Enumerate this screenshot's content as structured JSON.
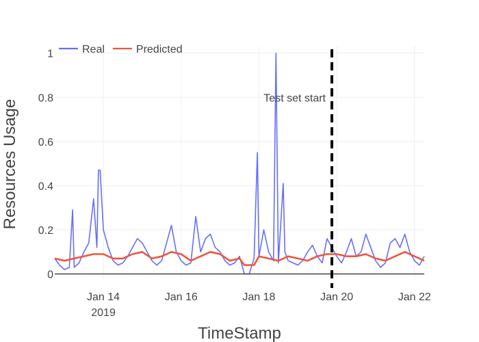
{
  "chart_data": {
    "type": "line",
    "xlabel": "TimeStamp",
    "ylabel": "Resources Usage",
    "x_range": [
      "2019-01-12 18:00",
      "2019-01-22 06:00"
    ],
    "ylim": [
      -0.02,
      1.03
    ],
    "x_ticks": [
      {
        "date": "2019-01-14",
        "label": "Jan 14",
        "sublabel": "2019"
      },
      {
        "date": "2019-01-16",
        "label": "Jan 16",
        "sublabel": ""
      },
      {
        "date": "2019-01-18",
        "label": "Jan 18",
        "sublabel": ""
      },
      {
        "date": "2019-01-20",
        "label": "Jan 20",
        "sublabel": ""
      },
      {
        "date": "2019-01-22",
        "label": "Jan 22",
        "sublabel": ""
      }
    ],
    "y_ticks": [
      {
        "value": 0,
        "label": "0"
      },
      {
        "value": 0.2,
        "label": "0.2"
      },
      {
        "value": 0.4,
        "label": "0.4"
      },
      {
        "value": 0.6,
        "label": "0.6"
      },
      {
        "value": 0.8,
        "label": "0.8"
      },
      {
        "value": 1,
        "label": "1"
      }
    ],
    "grid": true,
    "legend": {
      "position": "top-left",
      "orientation": "horizontal"
    },
    "series": [
      {
        "name": "Real",
        "color": "#636efa",
        "points": [
          [
            "2019-01-12 18:00",
            0.07
          ],
          [
            "2019-01-12 21:00",
            0.04
          ],
          [
            "2019-01-13 00:00",
            0.02
          ],
          [
            "2019-01-13 03:00",
            0.03
          ],
          [
            "2019-01-13 05:00",
            0.29
          ],
          [
            "2019-01-13 06:00",
            0.03
          ],
          [
            "2019-01-13 09:00",
            0.05
          ],
          [
            "2019-01-13 12:00",
            0.1
          ],
          [
            "2019-01-13 15:00",
            0.14
          ],
          [
            "2019-01-13 18:00",
            0.34
          ],
          [
            "2019-01-13 20:00",
            0.12
          ],
          [
            "2019-01-13 21:00",
            0.47
          ],
          [
            "2019-01-13 22:00",
            0.47
          ],
          [
            "2019-01-14 00:00",
            0.2
          ],
          [
            "2019-01-14 03:00",
            0.12
          ],
          [
            "2019-01-14 06:00",
            0.06
          ],
          [
            "2019-01-14 09:00",
            0.04
          ],
          [
            "2019-01-14 12:00",
            0.05
          ],
          [
            "2019-01-14 15:00",
            0.08
          ],
          [
            "2019-01-14 18:00",
            0.12
          ],
          [
            "2019-01-14 21:00",
            0.16
          ],
          [
            "2019-01-15 00:00",
            0.14
          ],
          [
            "2019-01-15 03:00",
            0.1
          ],
          [
            "2019-01-15 06:00",
            0.06
          ],
          [
            "2019-01-15 09:00",
            0.04
          ],
          [
            "2019-01-15 12:00",
            0.06
          ],
          [
            "2019-01-15 15:00",
            0.14
          ],
          [
            "2019-01-15 18:00",
            0.22
          ],
          [
            "2019-01-15 21:00",
            0.1
          ],
          [
            "2019-01-16 00:00",
            0.06
          ],
          [
            "2019-01-16 03:00",
            0.04
          ],
          [
            "2019-01-16 06:00",
            0.05
          ],
          [
            "2019-01-16 09:00",
            0.26
          ],
          [
            "2019-01-16 12:00",
            0.1
          ],
          [
            "2019-01-16 15:00",
            0.16
          ],
          [
            "2019-01-16 18:00",
            0.18
          ],
          [
            "2019-01-16 21:00",
            0.12
          ],
          [
            "2019-01-17 00:00",
            0.1
          ],
          [
            "2019-01-17 03:00",
            0.06
          ],
          [
            "2019-01-17 06:00",
            0.04
          ],
          [
            "2019-01-17 09:00",
            0.05
          ],
          [
            "2019-01-17 12:00",
            0.08
          ],
          [
            "2019-01-17 15:00",
            0.0
          ],
          [
            "2019-01-17 18:00",
            0.0
          ],
          [
            "2019-01-17 21:00",
            0.07
          ],
          [
            "2019-01-17 23:00",
            0.55
          ],
          [
            "2019-01-18 00:00",
            0.08
          ],
          [
            "2019-01-18 03:00",
            0.2
          ],
          [
            "2019-01-18 06:00",
            0.1
          ],
          [
            "2019-01-18 09:00",
            0.06
          ],
          [
            "2019-01-18 10:30",
            1.0
          ],
          [
            "2019-01-18 12:00",
            0.05
          ],
          [
            "2019-01-18 15:00",
            0.41
          ],
          [
            "2019-01-18 16:00",
            0.1
          ],
          [
            "2019-01-18 18:00",
            0.06
          ],
          [
            "2019-01-18 21:00",
            0.05
          ],
          [
            "2019-01-19 00:00",
            0.04
          ],
          [
            "2019-01-19 03:00",
            0.06
          ],
          [
            "2019-01-19 06:00",
            0.1
          ],
          [
            "2019-01-19 09:00",
            0.13
          ],
          [
            "2019-01-19 12:00",
            0.08
          ],
          [
            "2019-01-19 15:00",
            0.05
          ],
          [
            "2019-01-19 18:00",
            0.16
          ],
          [
            "2019-01-19 21:00",
            0.12
          ],
          [
            "2019-01-20 00:00",
            0.08
          ],
          [
            "2019-01-20 03:00",
            0.05
          ],
          [
            "2019-01-20 06:00",
            0.1
          ],
          [
            "2019-01-20 09:00",
            0.16
          ],
          [
            "2019-01-20 12:00",
            0.08
          ],
          [
            "2019-01-20 15:00",
            0.1
          ],
          [
            "2019-01-20 18:00",
            0.18
          ],
          [
            "2019-01-20 21:00",
            0.12
          ],
          [
            "2019-01-21 00:00",
            0.06
          ],
          [
            "2019-01-21 03:00",
            0.03
          ],
          [
            "2019-01-21 06:00",
            0.05
          ],
          [
            "2019-01-21 09:00",
            0.14
          ],
          [
            "2019-01-21 12:00",
            0.16
          ],
          [
            "2019-01-21 15:00",
            0.12
          ],
          [
            "2019-01-21 18:00",
            0.18
          ],
          [
            "2019-01-21 21:00",
            0.1
          ],
          [
            "2019-01-22 00:00",
            0.06
          ],
          [
            "2019-01-22 03:00",
            0.04
          ],
          [
            "2019-01-22 06:00",
            0.08
          ]
        ]
      },
      {
        "name": "Predicted",
        "color": "#ef553b",
        "points": [
          [
            "2019-01-12 18:00",
            0.07
          ],
          [
            "2019-01-13 00:00",
            0.06
          ],
          [
            "2019-01-13 06:00",
            0.07
          ],
          [
            "2019-01-13 12:00",
            0.08
          ],
          [
            "2019-01-13 18:00",
            0.09
          ],
          [
            "2019-01-14 00:00",
            0.09
          ],
          [
            "2019-01-14 06:00",
            0.07
          ],
          [
            "2019-01-14 12:00",
            0.07
          ],
          [
            "2019-01-14 18:00",
            0.09
          ],
          [
            "2019-01-15 00:00",
            0.1
          ],
          [
            "2019-01-15 06:00",
            0.07
          ],
          [
            "2019-01-15 12:00",
            0.08
          ],
          [
            "2019-01-15 18:00",
            0.1
          ],
          [
            "2019-01-16 00:00",
            0.09
          ],
          [
            "2019-01-16 06:00",
            0.06
          ],
          [
            "2019-01-16 12:00",
            0.08
          ],
          [
            "2019-01-16 18:00",
            0.1
          ],
          [
            "2019-01-17 00:00",
            0.09
          ],
          [
            "2019-01-17 06:00",
            0.06
          ],
          [
            "2019-01-17 12:00",
            0.07
          ],
          [
            "2019-01-17 15:00",
            0.04
          ],
          [
            "2019-01-17 21:00",
            0.04
          ],
          [
            "2019-01-18 00:00",
            0.08
          ],
          [
            "2019-01-18 06:00",
            0.07
          ],
          [
            "2019-01-18 12:00",
            0.06
          ],
          [
            "2019-01-18 18:00",
            0.08
          ],
          [
            "2019-01-19 00:00",
            0.07
          ],
          [
            "2019-01-19 06:00",
            0.06
          ],
          [
            "2019-01-19 12:00",
            0.08
          ],
          [
            "2019-01-19 18:00",
            0.09
          ],
          [
            "2019-01-20 00:00",
            0.09
          ],
          [
            "2019-01-20 06:00",
            0.08
          ],
          [
            "2019-01-20 12:00",
            0.08
          ],
          [
            "2019-01-20 18:00",
            0.09
          ],
          [
            "2019-01-21 00:00",
            0.07
          ],
          [
            "2019-01-21 06:00",
            0.06
          ],
          [
            "2019-01-21 12:00",
            0.08
          ],
          [
            "2019-01-21 18:00",
            0.1
          ],
          [
            "2019-01-22 00:00",
            0.08
          ],
          [
            "2019-01-22 06:00",
            0.06
          ]
        ]
      }
    ],
    "annotations": [
      {
        "type": "vline",
        "x": "2019-01-19 21:00",
        "style": "dashed",
        "color": "#000000"
      },
      {
        "type": "text",
        "x": "2019-01-19 21:00",
        "y": 0.8,
        "text": "Test set start",
        "anchor": "end"
      }
    ]
  }
}
